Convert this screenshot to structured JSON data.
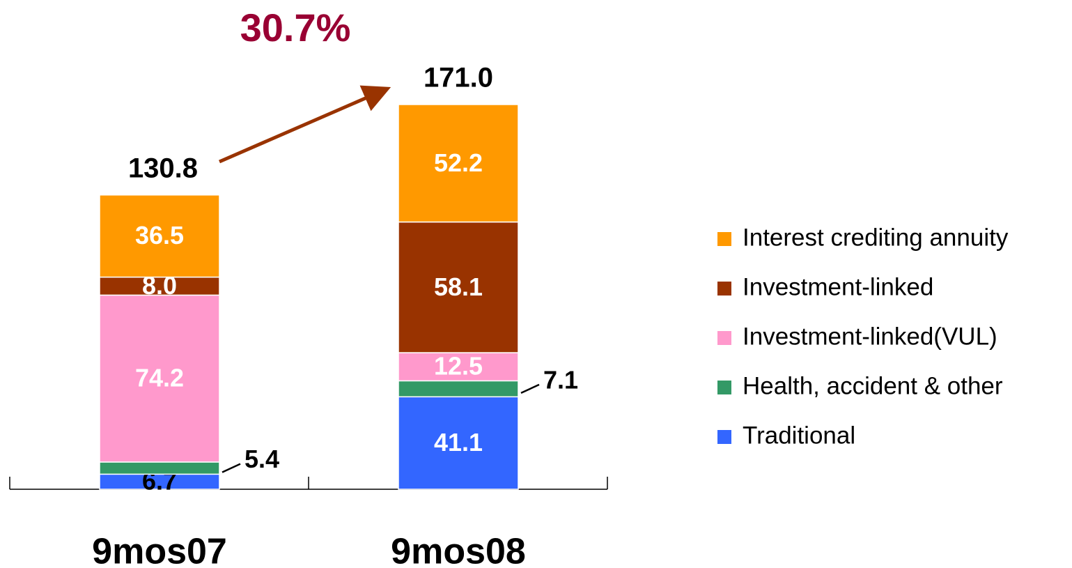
{
  "chart_data": {
    "type": "stacked-bar",
    "annotation": "30.7%",
    "categories": [
      "9mos07",
      "9mos08"
    ],
    "totals": [
      130.8,
      171
    ],
    "total_labels": [
      "130.8",
      "171.0"
    ],
    "series": [
      {
        "name": "Traditional",
        "color": "#3366ff",
        "values": [
          6.7,
          41.1
        ],
        "value_labels": [
          "6.7",
          "41.1"
        ]
      },
      {
        "name": "Health, accident & other",
        "color": "#339966",
        "values": [
          5.4,
          7.1
        ],
        "value_labels": [
          "5.4",
          "7.1"
        ]
      },
      {
        "name": "Investment-linked(VUL)",
        "color": "#ff99cc",
        "values": [
          74.2,
          12.5
        ],
        "value_labels": [
          "74.2",
          "12.5"
        ]
      },
      {
        "name": "Investment-linked",
        "color": "#993300",
        "values": [
          8,
          58.1
        ],
        "value_labels": [
          "8.0",
          "58.1"
        ]
      },
      {
        "name": "Interest crediting annuity",
        "color": "#ff9900",
        "values": [
          36.5,
          52.2
        ],
        "value_labels": [
          "36.5",
          "52.2"
        ]
      }
    ]
  }
}
